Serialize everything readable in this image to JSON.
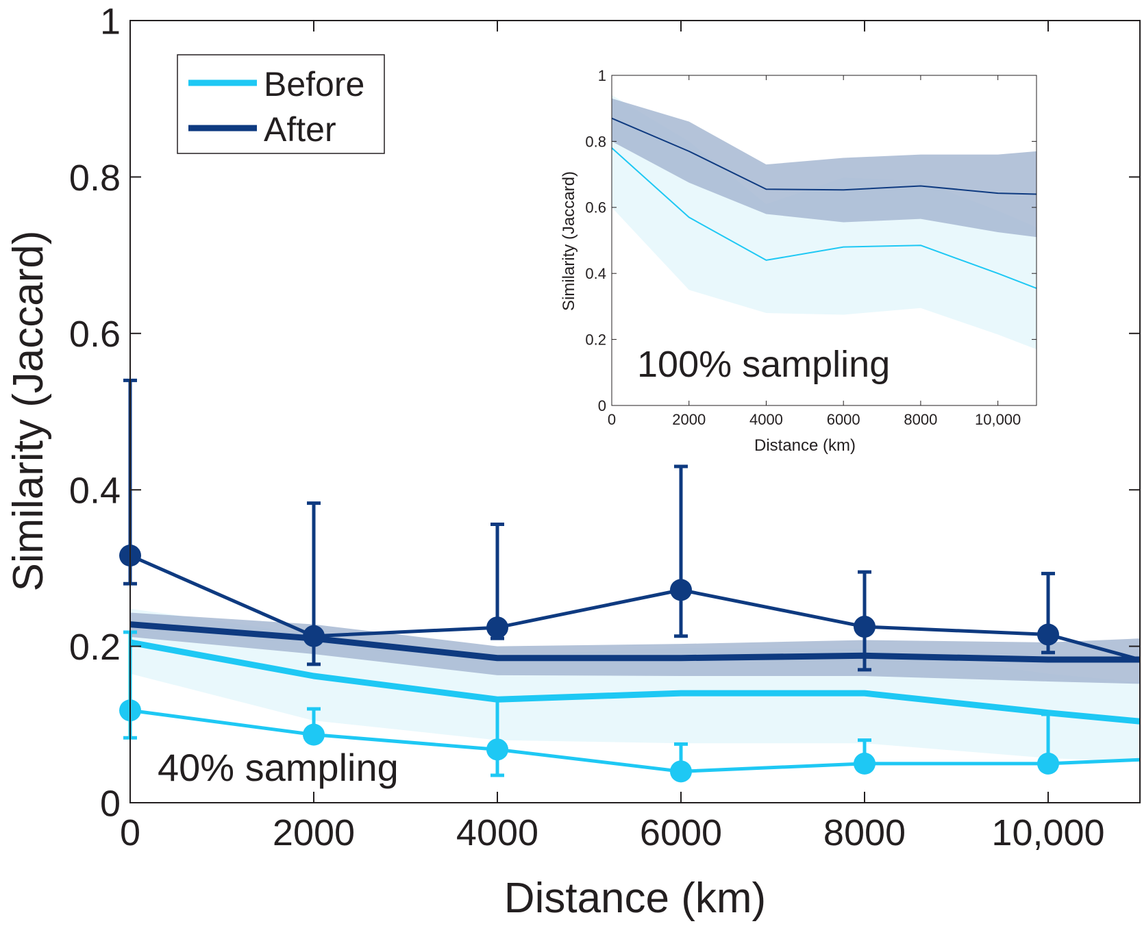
{
  "chart_data": [
    {
      "id": "main",
      "type": "line",
      "xlabel": "Distance (km)",
      "ylabel": "Similarity (Jaccard)",
      "xlim": [
        0,
        11000
      ],
      "ylim": [
        0,
        1
      ],
      "xticks": [
        0,
        2000,
        4000,
        6000,
        8000,
        10000
      ],
      "xtick_labels": [
        "0",
        "2000",
        "4000",
        "6000",
        "8000",
        "10,000"
      ],
      "yticks": [
        0,
        0.2,
        0.4,
        0.6,
        0.8,
        1
      ],
      "ytick_labels": [
        "0",
        "0.2",
        "0.4",
        "0.6",
        "0.8",
        "1"
      ],
      "annotation": "40% sampling",
      "legend": {
        "position": "top-left",
        "entries": [
          "Before",
          "After"
        ]
      },
      "bands": [
        {
          "name": "Before",
          "color": "#1ec8f4",
          "fill": "#e5f7fc",
          "x": [
            0,
            2000,
            4000,
            6000,
            8000,
            10000,
            11000
          ],
          "mean": [
            0.205,
            0.162,
            0.132,
            0.14,
            0.14,
            0.115,
            0.104
          ],
          "lower": [
            0.165,
            0.105,
            0.08,
            0.076,
            0.076,
            0.057,
            0.052
          ],
          "upper": [
            0.248,
            0.215,
            0.188,
            0.198,
            0.197,
            0.165,
            0.154
          ]
        },
        {
          "name": "After",
          "color": "#0e3a80",
          "fill": "#a7b8d2",
          "x": [
            0,
            2000,
            4000,
            6000,
            8000,
            10000,
            11000
          ],
          "mean": [
            0.228,
            0.21,
            0.185,
            0.185,
            0.188,
            0.183,
            0.183
          ],
          "lower": [
            0.212,
            0.19,
            0.163,
            0.162,
            0.162,
            0.155,
            0.152
          ],
          "upper": [
            0.243,
            0.228,
            0.2,
            0.203,
            0.208,
            0.205,
            0.21
          ]
        }
      ],
      "series": [
        {
          "name": "Before",
          "color": "#1ec8f4",
          "x": [
            0,
            2000,
            4000,
            6000,
            8000,
            10000,
            11000
          ],
          "values": [
            0.118,
            0.087,
            0.068,
            0.04,
            0.05,
            0.05,
            0.055
          ],
          "markers": [
            true,
            true,
            true,
            true,
            true,
            true,
            false
          ],
          "err_low": [
            0.083,
            null,
            0.035,
            null,
            null,
            null,
            null
          ],
          "err_high": [
            0.218,
            0.12,
            0.132,
            0.075,
            0.08,
            0.113,
            null
          ]
        },
        {
          "name": "After",
          "color": "#0e3a80",
          "x": [
            0,
            2000,
            4000,
            6000,
            8000,
            10000,
            11000
          ],
          "values": [
            0.316,
            0.213,
            0.224,
            0.272,
            0.225,
            0.215,
            0.183
          ],
          "markers": [
            true,
            true,
            true,
            true,
            true,
            true,
            false
          ],
          "err_low": [
            0.28,
            0.177,
            0.21,
            0.213,
            0.17,
            0.192,
            null
          ],
          "err_high": [
            0.54,
            0.383,
            0.356,
            0.43,
            0.295,
            0.293,
            null
          ]
        }
      ]
    },
    {
      "id": "inset",
      "type": "line",
      "xlabel": "Distance (km)",
      "ylabel": "Similarity (Jaccard)",
      "xlim": [
        0,
        11000
      ],
      "ylim": [
        0,
        1
      ],
      "xticks": [
        0,
        2000,
        4000,
        6000,
        8000,
        10000
      ],
      "xtick_labels": [
        "0",
        "2000",
        "4000",
        "6000",
        "8000",
        "10,000"
      ],
      "yticks": [
        0,
        0.2,
        0.4,
        0.6,
        0.8,
        1
      ],
      "ytick_labels": [
        "0",
        "0.2",
        "0.4",
        "0.6",
        "0.8",
        "1"
      ],
      "annotation": "100% sampling",
      "bands": [
        {
          "name": "Before",
          "color": "#1ec8f4",
          "fill": "#e5f7fc",
          "x": [
            0,
            2000,
            4000,
            6000,
            8000,
            10000,
            11000
          ],
          "mean": [
            0.78,
            0.57,
            0.44,
            0.48,
            0.485,
            0.4,
            0.355
          ],
          "lower": [
            0.6,
            0.35,
            0.28,
            0.275,
            0.295,
            0.215,
            0.17
          ],
          "upper": [
            0.94,
            0.8,
            0.61,
            0.69,
            0.68,
            0.59,
            0.54
          ]
        },
        {
          "name": "After",
          "color": "#0e3a80",
          "fill": "#a7b8d2",
          "x": [
            0,
            2000,
            4000,
            6000,
            8000,
            10000,
            11000
          ],
          "mean": [
            0.87,
            0.77,
            0.655,
            0.653,
            0.665,
            0.643,
            0.64
          ],
          "lower": [
            0.8,
            0.675,
            0.58,
            0.555,
            0.565,
            0.525,
            0.51
          ],
          "upper": [
            0.93,
            0.86,
            0.73,
            0.75,
            0.76,
            0.76,
            0.77
          ]
        }
      ]
    }
  ]
}
